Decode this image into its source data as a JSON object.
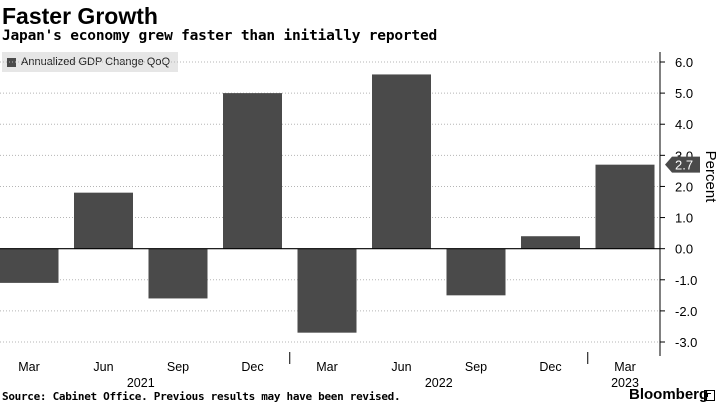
{
  "title": "Faster Growth",
  "subtitle": "Japan's economy grew faster than initially reported",
  "source": "Source: Cabinet Office. Previous results may have been revised.",
  "brand": "Bloomberg",
  "brand_icon": "bloomberg-window-icon",
  "colors": {
    "bar": "#4a4a4a",
    "grid": "#b5b5b5",
    "axis": "#000000",
    "legend_bg": "#e6e6e6",
    "latest_label_bg": "#4a4a4a",
    "latest_label_text": "#ffffff"
  },
  "chart_data": {
    "type": "bar",
    "categories": [
      "Mar",
      "Jun",
      "Sep",
      "Dec",
      "Mar",
      "Jun",
      "Sep",
      "Dec",
      "Mar"
    ],
    "year_labels": [
      {
        "label": "2021",
        "index": 1.5
      },
      {
        "label": "2022",
        "index": 5.5
      },
      {
        "label": "2023",
        "index": 8
      }
    ],
    "series": [
      {
        "name": "Annualized GDP Change QoQ",
        "values": [
          -1.1,
          1.8,
          -1.6,
          5.0,
          -2.7,
          5.6,
          -1.5,
          0.4,
          2.7
        ]
      }
    ],
    "latest_value_label": "2.7",
    "yticks": [
      "6.0",
      "5.0",
      "4.0",
      "3.0",
      "2.0",
      "1.0",
      "0.0",
      "-1.0",
      "-2.0",
      "-3.0"
    ],
    "ylabel": "Percent",
    "ylim": [
      -3.0,
      6.0
    ],
    "grid": true,
    "legend_position": "top-left",
    "yaxis_position": "right"
  }
}
